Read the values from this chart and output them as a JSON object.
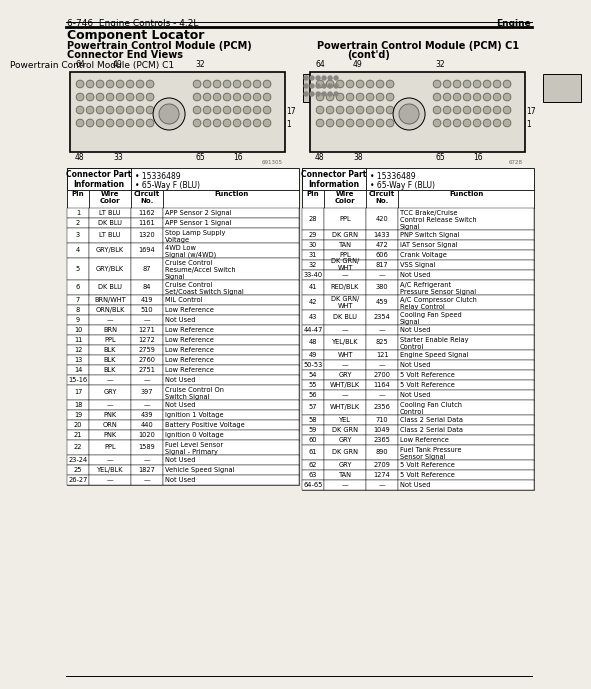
{
  "page_header": "6-746  Engine Controls - 4.2L",
  "page_header_right": "Engine",
  "section_title": "Component Locator",
  "left_subtitle1": "Powertrain Control Module (PCM)",
  "left_subtitle2": "Connector End Views",
  "left_diagram_title": "Powertrain Control Module (PCM) C1",
  "right_diagram_title_line1": "Powertrain Control Module (PCM) C1",
  "right_diagram_title_line2": "(cont'd)",
  "connector_part_label": "Connector Part\nInformation",
  "connector_part_info1": "• 15336489",
  "connector_part_info2": "• 65-Way F (BLU)",
  "left_table_headers": [
    "Pin",
    "Wire\nColor",
    "Circuit\nNo.",
    "Function"
  ],
  "left_table_data": [
    [
      "1",
      "LT BLU",
      "1162",
      "APP Sensor 2 Signal"
    ],
    [
      "2",
      "DK BLU",
      "1161",
      "APP Sensor 1 Signal"
    ],
    [
      "3",
      "LT BLU",
      "1320",
      "Stop Lamp Supply\nVoltage"
    ],
    [
      "4",
      "GRY/BLK",
      "1694",
      "4WD Low\nSignal (w/4WD)"
    ],
    [
      "5",
      "GRY/BLK",
      "87",
      "Cruise Control\nResume/Accel Switch\nSignal"
    ],
    [
      "6",
      "DK BLU",
      "84",
      "Cruise Control\nSet/Coast Switch Signal"
    ],
    [
      "7",
      "BRN/WHT",
      "419",
      "MIL Control"
    ],
    [
      "8",
      "ORN/BLK",
      "510",
      "Low Reference"
    ],
    [
      "9",
      "—",
      "—",
      "Not Used"
    ],
    [
      "10",
      "BRN",
      "1271",
      "Low Reference"
    ],
    [
      "11",
      "PPL",
      "1272",
      "Low Reference"
    ],
    [
      "12",
      "BLK",
      "2759",
      "Low Reference"
    ],
    [
      "13",
      "BLK",
      "2760",
      "Low Reference"
    ],
    [
      "14",
      "BLK",
      "2751",
      "Low Reference"
    ],
    [
      "15-16",
      "—",
      "—",
      "Not Used"
    ],
    [
      "17",
      "GRY",
      "397",
      "Cruise Control On\nSwitch Signal"
    ],
    [
      "18",
      "—",
      "—",
      "Not Used"
    ],
    [
      "19",
      "PNK",
      "439",
      "Ignition 1 Voltage"
    ],
    [
      "20",
      "ORN",
      "440",
      "Battery Positive Voltage"
    ],
    [
      "21",
      "PNK",
      "1020",
      "Ignition 0 Voltage"
    ],
    [
      "22",
      "PPL",
      "1589",
      "Fuel Level Sensor\nSignal - Primary"
    ],
    [
      "23-24",
      "—",
      "—",
      "Not Used"
    ],
    [
      "25",
      "YEL/BLK",
      "1827",
      "Vehicle Speed Signal"
    ],
    [
      "26-27",
      "—",
      "—",
      "Not Used"
    ]
  ],
  "right_table_data": [
    [
      "28",
      "PPL",
      "420",
      "TCC Brake/Cruise\nControl Release Switch\nSignal"
    ],
    [
      "29",
      "DK GRN",
      "1433",
      "PNP Switch Signal"
    ],
    [
      "30",
      "TAN",
      "472",
      "IAT Sensor Signal"
    ],
    [
      "31",
      "PPL",
      "606",
      "Crank Voltage"
    ],
    [
      "32",
      "DK GRN/\nWHT",
      "817",
      "VSS Signal"
    ],
    [
      "33-40",
      "—",
      "—",
      "Not Used"
    ],
    [
      "41",
      "RED/BLK",
      "380",
      "A/C Refrigerant\nPressure Sensor Signal"
    ],
    [
      "42",
      "DK GRN/\nWHT",
      "459",
      "A/C Compressor Clutch\nRelay Control"
    ],
    [
      "43",
      "DK BLU",
      "2354",
      "Cooling Fan Speed\nSignal"
    ],
    [
      "44-47",
      "—",
      "—",
      "Not Used"
    ],
    [
      "48",
      "YEL/BLK",
      "825",
      "Starter Enable Relay\nControl"
    ],
    [
      "49",
      "WHT",
      "121",
      "Engine Speed Signal"
    ],
    [
      "50-53",
      "—",
      "—",
      "Not Used"
    ],
    [
      "54",
      "GRY",
      "2700",
      "5 Volt Reference"
    ],
    [
      "55",
      "WHT/BLK",
      "1164",
      "5 Volt Reference"
    ],
    [
      "56",
      "—",
      "—",
      "Not Used"
    ],
    [
      "57",
      "WHT/BLK",
      "2356",
      "Cooling Fan Clutch\nControl"
    ],
    [
      "58",
      "YEL",
      "710",
      "Class 2 Serial Data"
    ],
    [
      "59",
      "DK GRN",
      "1049",
      "Class 2 Serial Data"
    ],
    [
      "60",
      "GRY",
      "2365",
      "Low Reference"
    ],
    [
      "61",
      "DK GRN",
      "890",
      "Fuel Tank Pressure\nSensor Signal"
    ],
    [
      "62",
      "GRY",
      "2709",
      "5 Volt Reference"
    ],
    [
      "63",
      "TAN",
      "1274",
      "5 Volt Reference"
    ],
    [
      "64-65",
      "—",
      "—",
      "Not Used"
    ]
  ],
  "bg_color": "#f0ede6"
}
